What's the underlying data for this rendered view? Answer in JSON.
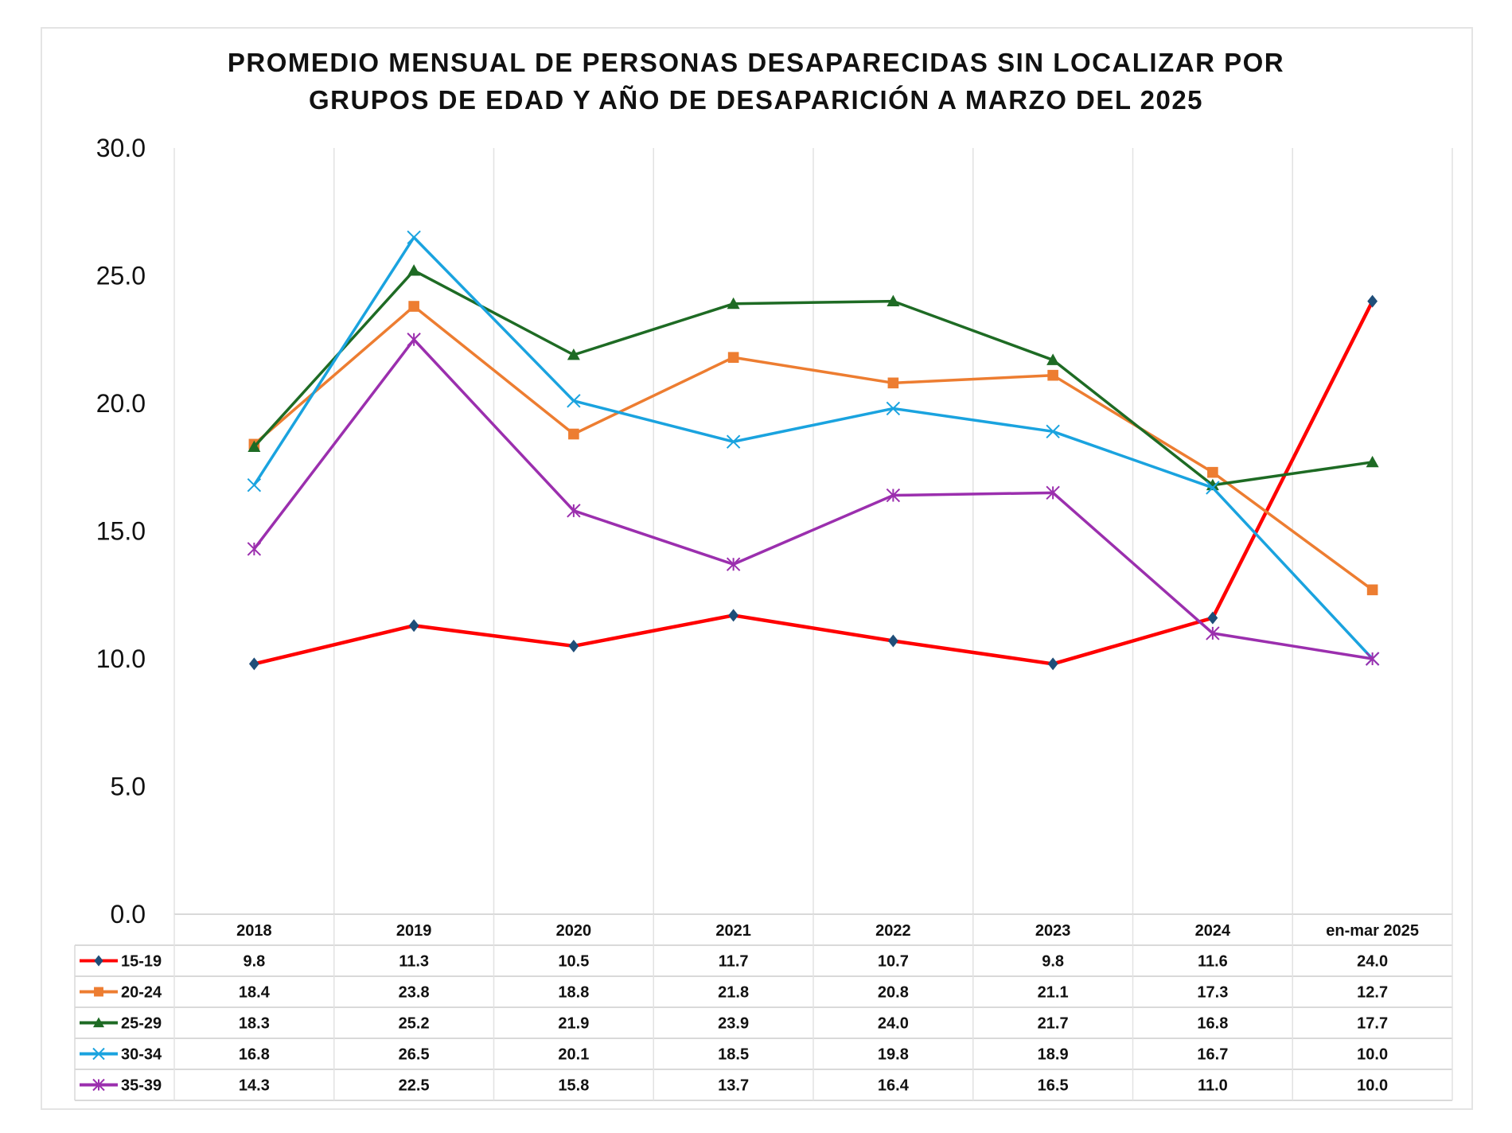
{
  "chart_data": {
    "type": "line",
    "title": [
      "PROMEDIO MENSUAL DE PERSONAS DESAPARECIDAS SIN LOCALIZAR POR",
      "GRUPOS DE EDAD Y AÑO DE DESAPARICIÓN A MARZO DEL 2025"
    ],
    "xlabel": "",
    "ylabel": "",
    "categories": [
      "2018",
      "2019",
      "2020",
      "2021",
      "2022",
      "2023",
      "2024",
      "en-mar 2025"
    ],
    "ylim": [
      0,
      30
    ],
    "yticks": [
      "0.0",
      "5.0",
      "10.0",
      "15.0",
      "20.0",
      "25.0",
      "30.0"
    ],
    "grid": "vertical",
    "legend": "data-table-bottom",
    "series": [
      {
        "name": "15-19",
        "color": "#ff0000",
        "marker": "diamond",
        "marker_color": "#1f4e79",
        "values": [
          9.8,
          11.3,
          10.5,
          11.7,
          10.7,
          9.8,
          11.6,
          24.0
        ]
      },
      {
        "name": "20-24",
        "color": "#ed7d31",
        "marker": "square",
        "marker_color": "#ed7d31",
        "values": [
          18.4,
          23.8,
          18.8,
          21.8,
          20.8,
          21.1,
          17.3,
          12.7
        ]
      },
      {
        "name": "25-29",
        "color": "#1e6b24",
        "marker": "triangle",
        "marker_color": "#1e6b24",
        "values": [
          18.3,
          25.2,
          21.9,
          23.9,
          24.0,
          21.7,
          16.8,
          17.7
        ]
      },
      {
        "name": "30-34",
        "color": "#1aa3df",
        "marker": "x",
        "marker_color": "#1aa3df",
        "values": [
          16.8,
          26.5,
          20.1,
          18.5,
          19.8,
          18.9,
          16.7,
          10.0
        ]
      },
      {
        "name": "35-39",
        "color": "#9b2fae",
        "marker": "star",
        "marker_color": "#9b2fae",
        "values": [
          14.3,
          22.5,
          15.8,
          13.7,
          16.4,
          16.5,
          11.0,
          10.0
        ]
      }
    ]
  }
}
